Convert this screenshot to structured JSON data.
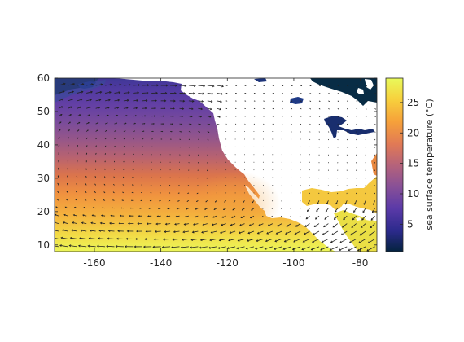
{
  "map": {
    "region": "North Pacific and North America",
    "projection": "equirectangular",
    "lon_range": [
      -172,
      -75
    ],
    "lat_range": [
      8,
      60
    ],
    "x_ticks": [
      -160,
      -140,
      -120,
      -100,
      -80
    ],
    "y_ticks": [
      10,
      20,
      30,
      40,
      50,
      60
    ],
    "x_tick_labels": [
      "-160",
      "-140",
      "-120",
      "-100",
      "-80"
    ],
    "y_tick_labels": [
      "10",
      "20",
      "30",
      "40",
      "50",
      "60"
    ],
    "field": "sea surface temperature",
    "field_range": [
      0.5,
      29
    ],
    "colormap": "thermal",
    "colormap_stops": [
      "#04233e",
      "#2c2a8c",
      "#5b3aa8",
      "#8a5196",
      "#b6637a",
      "#e17a55",
      "#f6a13a",
      "#f7d13d",
      "#e8fa5b"
    ],
    "land_color": "#ffffff",
    "vectors": "wind",
    "vector_color": "#222222",
    "lakes": [
      "Great Lakes",
      "Lake Winnipeg",
      "Hudson Bay"
    ]
  },
  "colorbar": {
    "label": "sea surface temperature (°C)",
    "ticks": [
      5,
      10,
      15,
      20,
      25
    ],
    "tick_labels": [
      "5",
      "10",
      "15",
      "20",
      "25"
    ]
  }
}
